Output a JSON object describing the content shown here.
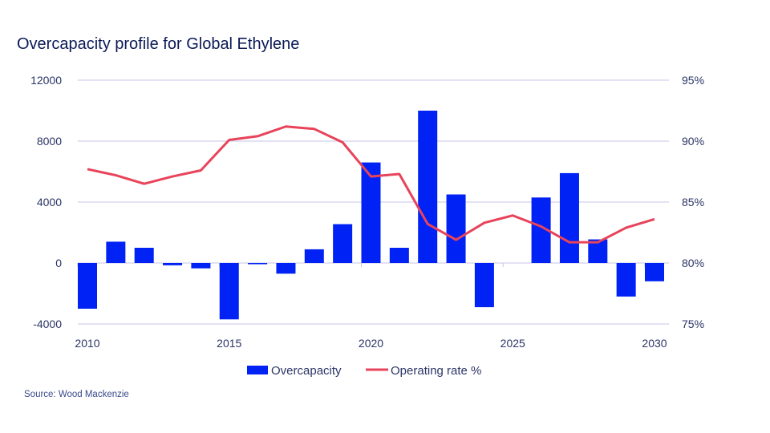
{
  "chart_data": {
    "type": "bar",
    "title": "Overcapacity profile for Global Ethylene",
    "source": "Source: Wood Mackenzie",
    "categories": [
      2010,
      2011,
      2012,
      2013,
      2014,
      2015,
      2016,
      2017,
      2018,
      2019,
      2020,
      2021,
      2022,
      2023,
      2024,
      2025,
      2026,
      2027,
      2028,
      2029,
      2030
    ],
    "x_tick_labels": [
      "2010",
      "2015",
      "2020",
      "2025",
      "2030"
    ],
    "series": [
      {
        "name": "Overcapacity",
        "type": "bar",
        "axis": "left",
        "color": "#0022f5",
        "values": [
          -3000,
          1400,
          1000,
          -150,
          -350,
          -3700,
          -80,
          -700,
          900,
          2550,
          6600,
          1000,
          10000,
          4500,
          -2900,
          0,
          4300,
          5900,
          1550,
          -2200,
          -1200
        ]
      },
      {
        "name": "Operating rate %",
        "type": "line",
        "axis": "right",
        "color": "#e8435a",
        "values": [
          87.7,
          87.2,
          86.5,
          87.1,
          87.6,
          90.1,
          90.4,
          91.2,
          91.0,
          89.9,
          87.1,
          87.3,
          83.2,
          81.9,
          83.3,
          83.9,
          83.0,
          81.7,
          81.7,
          82.9,
          83.6
        ]
      }
    ],
    "y_left": {
      "ylim": [
        -4000,
        12000
      ],
      "ticks": [
        "12000",
        "8000",
        "4000",
        "0",
        "-4000"
      ]
    },
    "y_right": {
      "ylim": [
        75,
        95
      ],
      "ticks": [
        "95%",
        "90%",
        "85%",
        "80%",
        "75%"
      ]
    },
    "grid": true,
    "legend": "bottom"
  }
}
